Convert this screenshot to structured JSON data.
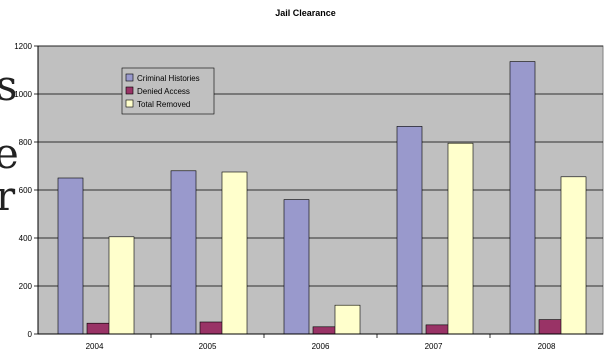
{
  "chart_data": {
    "type": "bar",
    "title": "Jail Clearance",
    "categories": [
      "2004",
      "2005",
      "2006",
      "2007",
      "2008"
    ],
    "series": [
      {
        "name": "Criminal Histories",
        "values": [
          650,
          680,
          560,
          865,
          1135
        ]
      },
      {
        "name": "Denied Access",
        "values": [
          45,
          50,
          30,
          38,
          60
        ]
      },
      {
        "name": "Total Removed",
        "values": [
          405,
          675,
          120,
          795,
          655
        ]
      }
    ],
    "ylim": [
      0,
      1200
    ],
    "yticks": [
      0,
      200,
      400,
      600,
      800,
      1000,
      1200
    ],
    "grid": true,
    "legend_position": "top-left",
    "colors": {
      "plot_background": "#c0c0c0",
      "series": [
        "#9999cc",
        "#993366",
        "#ffffcc"
      ],
      "bar_outline": "#000000",
      "gridline": "#000000"
    }
  },
  "background_glyphs": [
    "s",
    "e",
    "r"
  ]
}
